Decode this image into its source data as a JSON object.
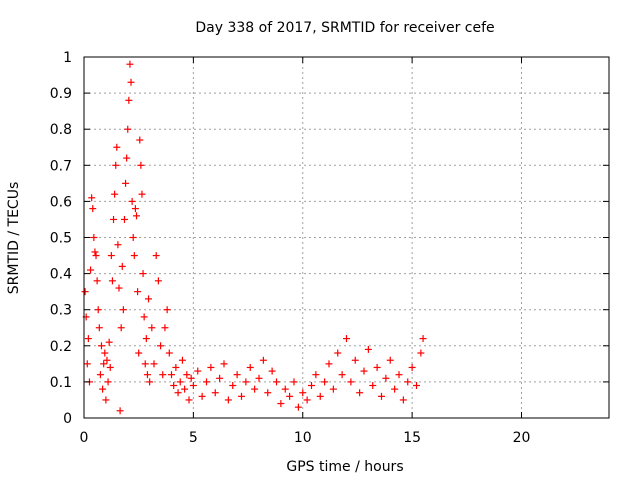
{
  "chart_data": {
    "type": "scatter",
    "title": "Day 338 of 2017, SRMTID for receiver cefe",
    "xlabel": "GPS time / hours",
    "ylabel": "SRMTID / TECUs",
    "xlim": [
      0,
      24
    ],
    "ylim": [
      0,
      1
    ],
    "x_ticks": [
      0,
      5,
      10,
      15,
      20
    ],
    "x_tick_labels": [
      "0",
      "5",
      "10",
      "15",
      "20"
    ],
    "y_ticks": [
      0,
      0.1,
      0.2,
      0.3,
      0.4,
      0.5,
      0.6,
      0.7,
      0.8,
      0.9,
      1
    ],
    "y_tick_labels": [
      "0",
      "0.1",
      "0.2",
      "0.3",
      "0.4",
      "0.5",
      "0.6",
      "0.7",
      "0.8",
      "0.9",
      "1"
    ],
    "grid": true,
    "marker": "+",
    "series": [
      {
        "name": "SRMTID",
        "color": "#ff0000",
        "points": [
          [
            0.05,
            0.35
          ],
          [
            0.1,
            0.28
          ],
          [
            0.15,
            0.15
          ],
          [
            0.2,
            0.22
          ],
          [
            0.25,
            0.1
          ],
          [
            0.3,
            0.41
          ],
          [
            0.35,
            0.61
          ],
          [
            0.4,
            0.58
          ],
          [
            0.45,
            0.5
          ],
          [
            0.5,
            0.46
          ],
          [
            0.55,
            0.45
          ],
          [
            0.6,
            0.38
          ],
          [
            0.65,
            0.3
          ],
          [
            0.7,
            0.25
          ],
          [
            0.75,
            0.12
          ],
          [
            0.8,
            0.2
          ],
          [
            0.85,
            0.08
          ],
          [
            0.9,
            0.15
          ],
          [
            0.95,
            0.18
          ],
          [
            1.0,
            0.05
          ],
          [
            1.05,
            0.16
          ],
          [
            1.1,
            0.1
          ],
          [
            1.15,
            0.21
          ],
          [
            1.2,
            0.14
          ],
          [
            1.25,
            0.45
          ],
          [
            1.3,
            0.38
          ],
          [
            1.35,
            0.55
          ],
          [
            1.4,
            0.62
          ],
          [
            1.45,
            0.7
          ],
          [
            1.5,
            0.75
          ],
          [
            1.55,
            0.48
          ],
          [
            1.6,
            0.36
          ],
          [
            1.65,
            0.02
          ],
          [
            1.7,
            0.25
          ],
          [
            1.75,
            0.42
          ],
          [
            1.8,
            0.3
          ],
          [
            1.85,
            0.55
          ],
          [
            1.9,
            0.65
          ],
          [
            1.95,
            0.72
          ],
          [
            2.0,
            0.8
          ],
          [
            2.05,
            0.88
          ],
          [
            2.1,
            0.98
          ],
          [
            2.15,
            0.93
          ],
          [
            2.2,
            0.6
          ],
          [
            2.25,
            0.5
          ],
          [
            2.3,
            0.45
          ],
          [
            2.35,
            0.58
          ],
          [
            2.4,
            0.56
          ],
          [
            2.45,
            0.35
          ],
          [
            2.5,
            0.18
          ],
          [
            2.55,
            0.77
          ],
          [
            2.6,
            0.7
          ],
          [
            2.65,
            0.62
          ],
          [
            2.7,
            0.4
          ],
          [
            2.75,
            0.28
          ],
          [
            2.8,
            0.15
          ],
          [
            2.85,
            0.22
          ],
          [
            2.9,
            0.12
          ],
          [
            2.95,
            0.33
          ],
          [
            3.0,
            0.1
          ],
          [
            3.1,
            0.25
          ],
          [
            3.2,
            0.15
          ],
          [
            3.3,
            0.45
          ],
          [
            3.4,
            0.38
          ],
          [
            3.5,
            0.2
          ],
          [
            3.6,
            0.12
          ],
          [
            3.7,
            0.25
          ],
          [
            3.8,
            0.3
          ],
          [
            3.9,
            0.18
          ],
          [
            4.0,
            0.12
          ],
          [
            4.1,
            0.09
          ],
          [
            4.2,
            0.14
          ],
          [
            4.3,
            0.07
          ],
          [
            4.4,
            0.1
          ],
          [
            4.5,
            0.16
          ],
          [
            4.6,
            0.08
          ],
          [
            4.7,
            0.12
          ],
          [
            4.8,
            0.05
          ],
          [
            4.9,
            0.11
          ],
          [
            5.0,
            0.09
          ],
          [
            5.2,
            0.13
          ],
          [
            5.4,
            0.06
          ],
          [
            5.6,
            0.1
          ],
          [
            5.8,
            0.14
          ],
          [
            6.0,
            0.07
          ],
          [
            6.2,
            0.11
          ],
          [
            6.4,
            0.15
          ],
          [
            6.6,
            0.05
          ],
          [
            6.8,
            0.09
          ],
          [
            7.0,
            0.12
          ],
          [
            7.2,
            0.06
          ],
          [
            7.4,
            0.1
          ],
          [
            7.6,
            0.14
          ],
          [
            7.8,
            0.08
          ],
          [
            8.0,
            0.11
          ],
          [
            8.2,
            0.16
          ],
          [
            8.4,
            0.07
          ],
          [
            8.6,
            0.13
          ],
          [
            8.8,
            0.1
          ],
          [
            9.0,
            0.04
          ],
          [
            9.2,
            0.08
          ],
          [
            9.4,
            0.06
          ],
          [
            9.6,
            0.1
          ],
          [
            9.8,
            0.03
          ],
          [
            10.0,
            0.07
          ],
          [
            10.2,
            0.05
          ],
          [
            10.4,
            0.09
          ],
          [
            10.6,
            0.12
          ],
          [
            10.8,
            0.06
          ],
          [
            11.0,
            0.1
          ],
          [
            11.2,
            0.15
          ],
          [
            11.4,
            0.08
          ],
          [
            11.6,
            0.18
          ],
          [
            11.8,
            0.12
          ],
          [
            12.0,
            0.22
          ],
          [
            12.2,
            0.1
          ],
          [
            12.4,
            0.16
          ],
          [
            12.6,
            0.07
          ],
          [
            12.8,
            0.13
          ],
          [
            13.0,
            0.19
          ],
          [
            13.2,
            0.09
          ],
          [
            13.4,
            0.14
          ],
          [
            13.6,
            0.06
          ],
          [
            13.8,
            0.11
          ],
          [
            14.0,
            0.16
          ],
          [
            14.2,
            0.08
          ],
          [
            14.4,
            0.12
          ],
          [
            14.6,
            0.05
          ],
          [
            14.8,
            0.1
          ],
          [
            15.0,
            0.14
          ],
          [
            15.2,
            0.09
          ],
          [
            15.4,
            0.18
          ],
          [
            15.5,
            0.22
          ]
        ]
      }
    ]
  }
}
